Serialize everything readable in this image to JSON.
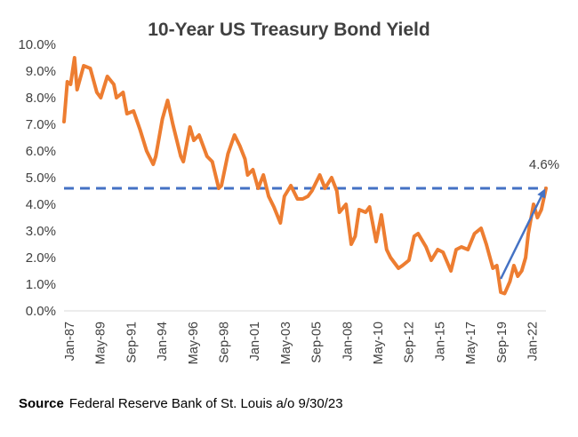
{
  "chart_data": {
    "type": "line",
    "title": "10-Year US Treasury Bond Yield",
    "xlabel": "",
    "ylabel": "",
    "ylim": [
      0,
      10
    ],
    "y_tick_labels": [
      "0.0%",
      "1.0%",
      "2.0%",
      "3.0%",
      "4.0%",
      "5.0%",
      "6.0%",
      "7.0%",
      "8.0%",
      "9.0%",
      "10.0%"
    ],
    "x_tick_labels": [
      "Jan-87",
      "May-89",
      "Sep-91",
      "Jan-94",
      "May-96",
      "Sep-98",
      "Jan-01",
      "May-03",
      "Sep-05",
      "Jan-08",
      "May-10",
      "Sep-12",
      "Jan-15",
      "May-17",
      "Sep-19",
      "Jan-22"
    ],
    "grid": false,
    "series": [
      {
        "name": "",
        "color": "#ED7D31",
        "x": [
          1987.0,
          1987.25,
          1987.5,
          1987.8,
          1988.0,
          1988.5,
          1989.0,
          1989.5,
          1989.8,
          1990.3,
          1990.8,
          1991.0,
          1991.5,
          1991.8,
          1992.3,
          1992.8,
          1993.3,
          1993.8,
          1994.0,
          1994.5,
          1994.9,
          1995.3,
          1995.9,
          1996.1,
          1996.6,
          1996.9,
          1997.3,
          1997.9,
          1998.3,
          1998.8,
          1999.0,
          1999.5,
          2000.0,
          2000.4,
          2000.8,
          2001.0,
          2001.4,
          2001.8,
          2002.2,
          2002.6,
          2003.0,
          2003.5,
          2003.8,
          2004.3,
          2004.8,
          2005.2,
          2005.6,
          2005.9,
          2006.5,
          2006.9,
          2007.4,
          2007.8,
          2008.0,
          2008.5,
          2008.9,
          2009.2,
          2009.5,
          2010.0,
          2010.3,
          2010.8,
          2011.2,
          2011.6,
          2011.9,
          2012.5,
          2012.8,
          2013.3,
          2013.7,
          2014.0,
          2014.6,
          2015.0,
          2015.5,
          2015.9,
          2016.5,
          2016.9,
          2017.3,
          2017.8,
          2018.3,
          2018.8,
          2019.2,
          2019.7,
          2020.0,
          2020.3,
          2020.6,
          2021.0,
          2021.3,
          2021.6,
          2021.9,
          2022.2,
          2022.4,
          2022.8,
          2023.1,
          2023.4,
          2023.75
        ],
        "values": [
          7.1,
          8.6,
          8.5,
          9.5,
          8.3,
          9.2,
          9.1,
          8.2,
          8.0,
          8.8,
          8.5,
          8.0,
          8.2,
          7.4,
          7.5,
          6.8,
          6.0,
          5.5,
          5.8,
          7.2,
          7.9,
          7.0,
          5.8,
          5.6,
          6.9,
          6.4,
          6.6,
          5.8,
          5.6,
          4.6,
          4.7,
          5.9,
          6.6,
          6.2,
          5.7,
          5.1,
          5.3,
          4.6,
          5.1,
          4.3,
          3.9,
          3.3,
          4.3,
          4.7,
          4.2,
          4.2,
          4.3,
          4.5,
          5.1,
          4.6,
          5.0,
          4.5,
          3.7,
          4.0,
          2.5,
          2.8,
          3.8,
          3.7,
          3.9,
          2.6,
          3.6,
          2.3,
          2.0,
          1.6,
          1.7,
          1.9,
          2.8,
          2.9,
          2.4,
          1.9,
          2.3,
          2.2,
          1.5,
          2.3,
          2.4,
          2.3,
          2.9,
          3.1,
          2.5,
          1.6,
          1.7,
          0.7,
          0.65,
          1.1,
          1.7,
          1.3,
          1.5,
          2.0,
          2.9,
          4.0,
          3.5,
          3.8,
          4.6
        ]
      }
    ],
    "reference_line": {
      "value": 4.6,
      "label": "4.6%",
      "color": "#4472C4",
      "style": "dashed"
    },
    "trend_arrow": {
      "from": [
        2020.3,
        1.2
      ],
      "to": [
        2023.6,
        4.5
      ],
      "color": "#4472C4"
    }
  },
  "source": {
    "label": "Source",
    "text": "Federal Reserve Bank of St. Louis a/o 9/30/23"
  }
}
